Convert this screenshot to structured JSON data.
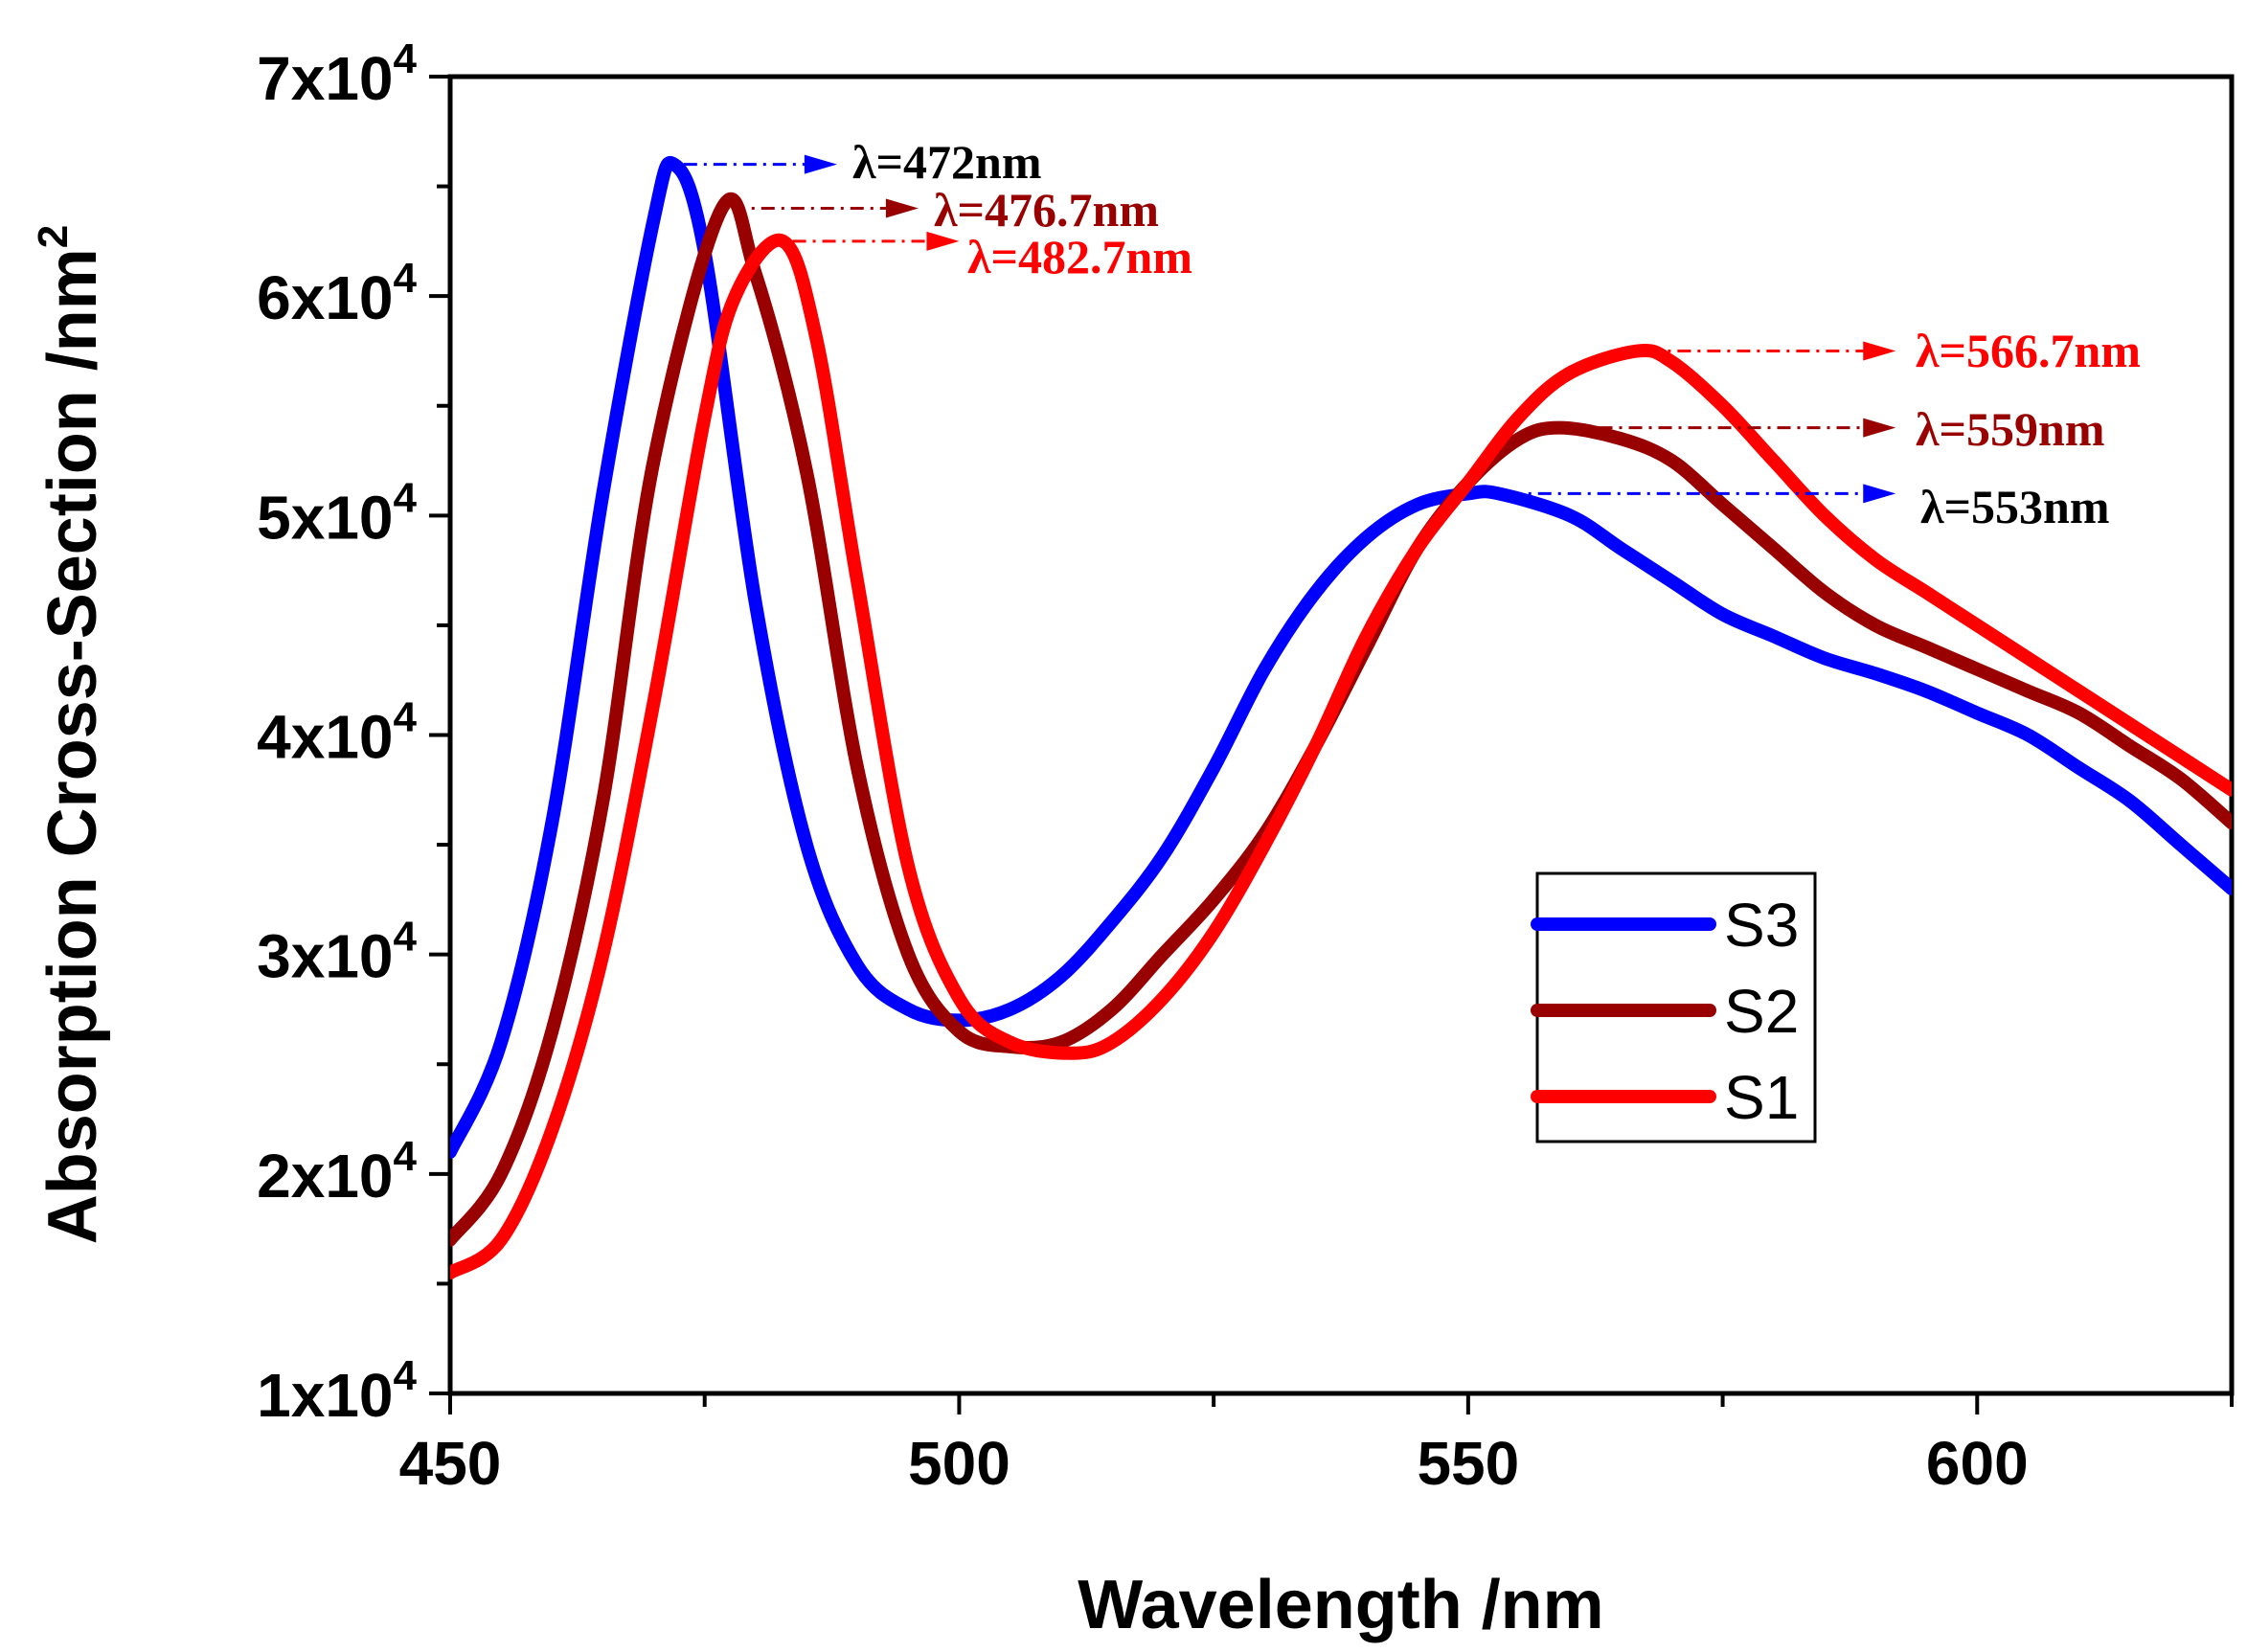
{
  "chart_data": {
    "type": "line",
    "title": "",
    "xlabel": "Wavelength  /nm",
    "ylabel": "Absorption Cross-Section  /nm",
    "ylabel_sup": "2",
    "xlim": [
      450,
      625
    ],
    "ylim": [
      10000,
      70000
    ],
    "x_ticks": [
      450,
      500,
      550,
      600
    ],
    "x_tick_labels": [
      "450",
      "500",
      "550",
      "600"
    ],
    "y_ticks": [
      10000,
      20000,
      30000,
      40000,
      50000,
      60000,
      70000
    ],
    "y_tick_labels": [
      {
        "base": "1x10",
        "exp": "4"
      },
      {
        "base": "2x10",
        "exp": "4"
      },
      {
        "base": "3x10",
        "exp": "4"
      },
      {
        "base": "4x10",
        "exp": "4"
      },
      {
        "base": "5x10",
        "exp": "4"
      },
      {
        "base": "6x10",
        "exp": "4"
      },
      {
        "base": "7x10",
        "exp": "4"
      }
    ],
    "legend": {
      "position": "center-right",
      "entries": [
        "S3",
        "S2",
        "S1"
      ]
    },
    "series": [
      {
        "name": "S3",
        "color": "#0000ff",
        "x": [
          450,
          455,
          460,
          465,
          470,
          472,
          475,
          480,
          485,
          490,
          495,
          500,
          505,
          510,
          515,
          520,
          525,
          530,
          535,
          540,
          545,
          550,
          553,
          560,
          565,
          570,
          575,
          580,
          585,
          590,
          595,
          600,
          605,
          610,
          615,
          620,
          625
        ],
        "values": [
          21000,
          26000,
          36000,
          51000,
          63500,
          66000,
          62000,
          46000,
          35000,
          29500,
          27500,
          27000,
          27500,
          29000,
          31500,
          34500,
          38500,
          43000,
          46500,
          49000,
          50500,
          51000,
          51000,
          50000,
          48500,
          47000,
          45500,
          44500,
          43500,
          42800,
          42000,
          41000,
          40000,
          38500,
          37000,
          35000,
          33000
        ]
      },
      {
        "name": "S2",
        "color": "#990000",
        "x": [
          450,
          455,
          460,
          465,
          470,
          476.7,
          480,
          485,
          490,
          495,
          500,
          505,
          510,
          515,
          520,
          525,
          530,
          535,
          540,
          545,
          550,
          555,
          559,
          565,
          570,
          575,
          580,
          585,
          590,
          595,
          600,
          605,
          610,
          615,
          620,
          625
        ],
        "values": [
          17000,
          20000,
          26500,
          37000,
          52500,
          64000,
          61000,
          52000,
          38500,
          30000,
          26500,
          25800,
          26000,
          27500,
          30000,
          32500,
          35500,
          39500,
          44000,
          48500,
          51500,
          53500,
          54000,
          53500,
          52500,
          50500,
          48500,
          46500,
          45000,
          44000,
          43000,
          42000,
          41000,
          39500,
          38000,
          36000
        ]
      },
      {
        "name": "S1",
        "color": "#ff0000",
        "x": [
          450,
          455,
          460,
          465,
          470,
          475,
          478,
          482.7,
          486,
          490,
          495,
          500,
          505,
          511,
          515,
          520,
          525,
          530,
          535,
          540,
          545,
          550,
          555,
          560,
          566.7,
          570,
          575,
          580,
          585,
          590,
          595,
          600,
          605,
          610,
          615,
          620,
          625
        ],
        "values": [
          15500,
          17000,
          22000,
          30000,
          41500,
          54500,
          60000,
          62500,
          58000,
          47000,
          34000,
          28000,
          26000,
          25500,
          26000,
          28000,
          31000,
          35000,
          39500,
          44500,
          48500,
          51500,
          54500,
          56500,
          57500,
          57000,
          55000,
          52500,
          50000,
          48000,
          46500,
          45000,
          43500,
          42000,
          40500,
          39000,
          37500
        ]
      }
    ],
    "annotations": [
      {
        "label": "λ=472nm",
        "series": "S3",
        "peak_x": 472,
        "peak_y": 66000,
        "arrow_end_x": 488,
        "text_color": "#000000"
      },
      {
        "label": "λ=476.7nm",
        "series": "S2",
        "peak_x": 476.7,
        "peak_y": 64000,
        "arrow_end_x": 496,
        "text_color": "#990000"
      },
      {
        "label": "λ=482.7nm",
        "series": "S1",
        "peak_x": 482.7,
        "peak_y": 62500,
        "arrow_end_x": 500,
        "text_color": "#ff0000"
      },
      {
        "label": "λ=566.7nm",
        "series": "S1",
        "peak_x": 566.7,
        "peak_y": 57500,
        "arrow_end_x": 592,
        "text_color": "#ff0000"
      },
      {
        "label": "λ=559nm",
        "series": "S2",
        "peak_x": 559,
        "peak_y": 54000,
        "arrow_end_x": 592,
        "text_color": "#990000"
      },
      {
        "label": "λ=553nm",
        "series": "S3",
        "peak_x": 553,
        "peak_y": 51000,
        "arrow_end_x": 592,
        "text_color": "#000000"
      }
    ]
  }
}
